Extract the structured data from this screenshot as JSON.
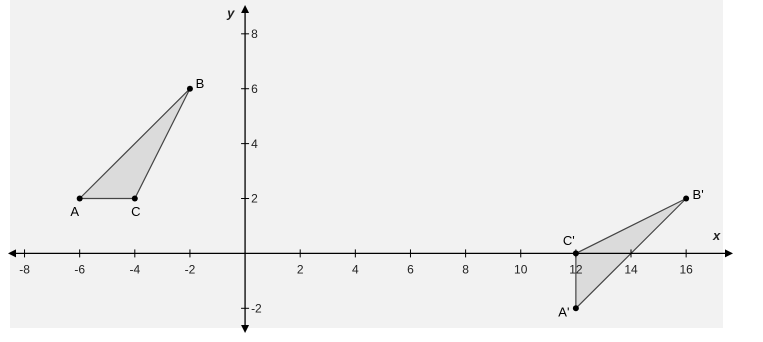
{
  "axes": {
    "x_label": "x",
    "y_label": "y",
    "xlim": [
      -8.6,
      17.7
    ],
    "ylim": [
      -2.9,
      9.05
    ],
    "xticks": [
      -8,
      -6,
      -4,
      -2,
      2,
      4,
      6,
      8,
      10,
      12,
      14,
      16
    ],
    "yticks": [
      -2,
      2,
      4,
      6,
      8
    ]
  },
  "shapes": [
    {
      "points": [
        {
          "label": "A",
          "x": -6,
          "y": 2
        },
        {
          "label": "B",
          "x": -2,
          "y": 6
        },
        {
          "label": "C",
          "x": -4,
          "y": 2
        }
      ]
    },
    {
      "points": [
        {
          "label": "A'",
          "x": 12,
          "y": -2
        },
        {
          "label": "B'",
          "x": 16,
          "y": 2
        },
        {
          "label": "C'",
          "x": 12,
          "y": 0
        }
      ]
    }
  ]
}
